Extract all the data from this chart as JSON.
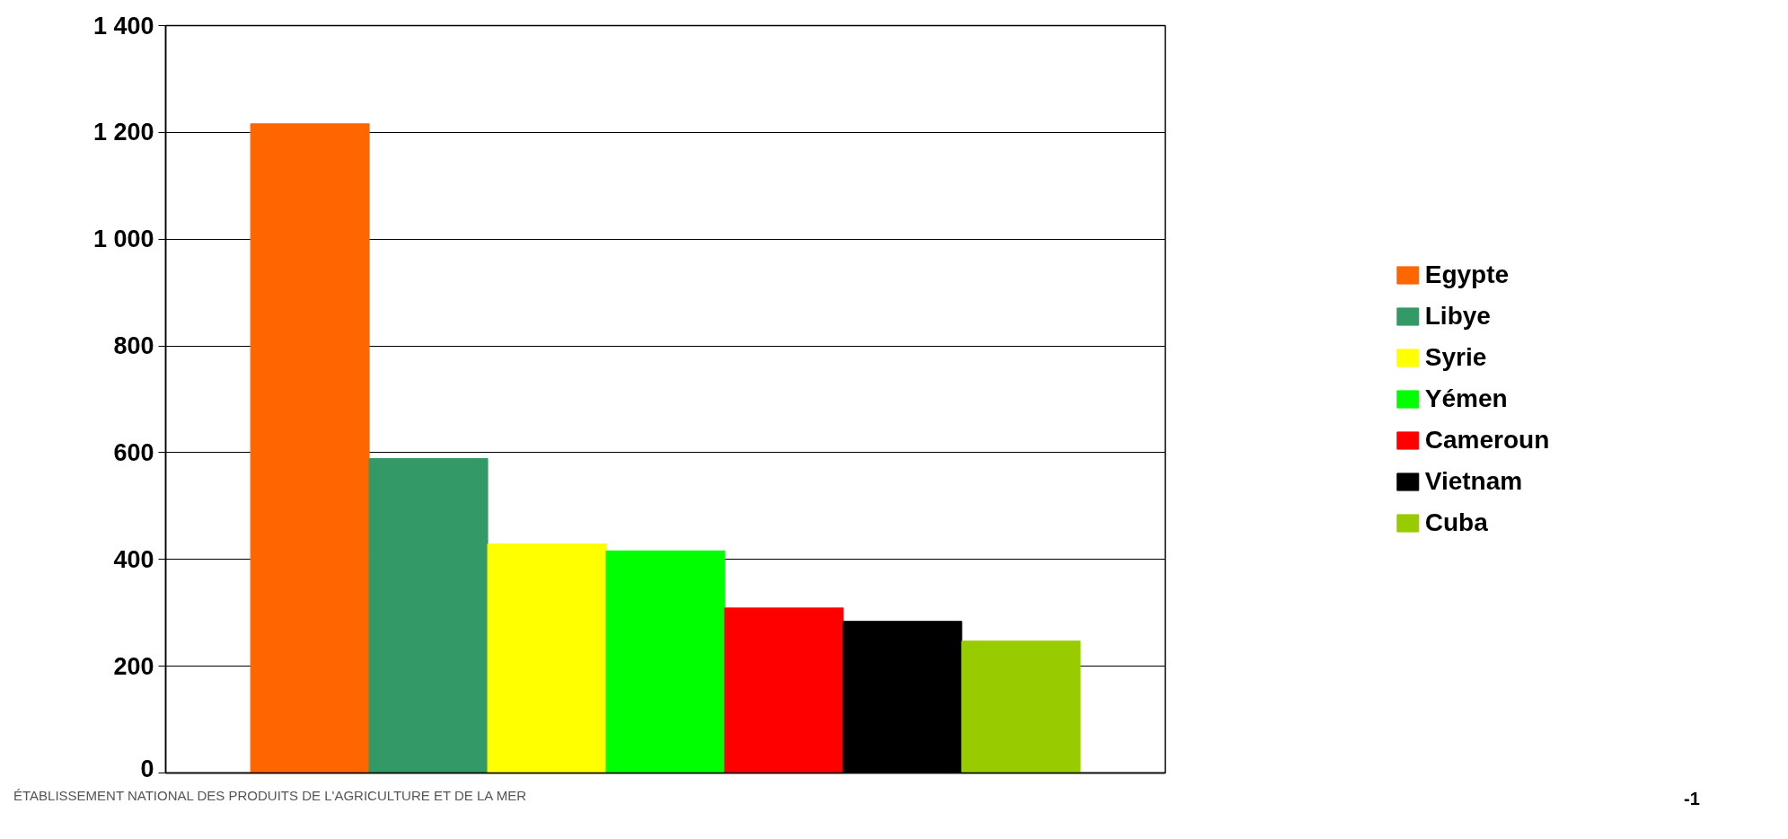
{
  "chart_data": {
    "type": "bar",
    "categories": [
      null
    ],
    "series": [
      {
        "name": "Egypte",
        "color": "#ff6600",
        "values": [
          1216
        ]
      },
      {
        "name": "Libye",
        "color": "#339966",
        "values": [
          589
        ]
      },
      {
        "name": "Syrie",
        "color": "#ffff00",
        "values": [
          429
        ]
      },
      {
        "name": "Yémen",
        "color": "#00ff00",
        "values": [
          416
        ]
      },
      {
        "name": "Cameroun",
        "color": "#ff0000",
        "values": [
          309
        ]
      },
      {
        "name": "Vietnam",
        "color": "#000000",
        "values": [
          284
        ]
      },
      {
        "name": "Cuba",
        "color": "#99cc00",
        "values": [
          247
        ]
      }
    ],
    "ylim": [
      0,
      1400
    ],
    "yticks": [
      {
        "value": 0,
        "label": "0"
      },
      {
        "value": 200,
        "label": "200"
      },
      {
        "value": 400,
        "label": "400"
      },
      {
        "value": 600,
        "label": "600"
      },
      {
        "value": 800,
        "label": "800"
      },
      {
        "value": 1000,
        "label": "1 000"
      },
      {
        "value": 1200,
        "label": "1 200"
      },
      {
        "value": 1400,
        "label": "1 400"
      }
    ],
    "grid": "y",
    "legend": "right",
    "annotations": [
      "ÉTABLISSEMENT NATIONAL DES PRODUITS DE L'AGRICULTURE ET DE LA MER",
      "-1"
    ]
  }
}
